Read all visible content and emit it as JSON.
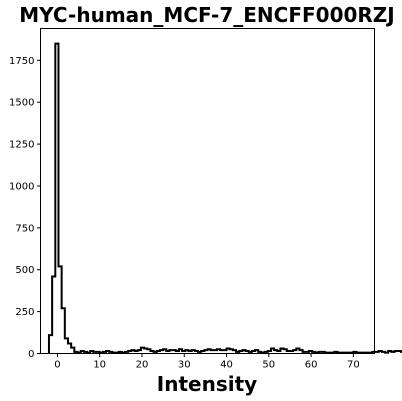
{
  "chart_data": {
    "type": "histogram",
    "title": "MYC-human_MCF-7_ENCFF000RZJ",
    "xlabel": "Intensity",
    "ylabel": "",
    "xlim": [
      -4,
      75
    ],
    "ylim": [
      0,
      1940
    ],
    "grid": false,
    "legend": "none",
    "histtype": "step",
    "line_color": "#000000",
    "x_ticks": [
      0,
      10,
      20,
      30,
      40,
      50,
      60,
      70
    ],
    "y_ticks": [
      0,
      250,
      500,
      750,
      1000,
      1250,
      1500,
      1750
    ],
    "bin_start": -2,
    "bin_width": 0.75,
    "counts": [
      110,
      460,
      1850,
      520,
      270,
      90,
      60,
      35,
      10,
      5,
      15,
      10,
      5,
      15,
      10,
      10,
      5,
      10,
      15,
      10,
      5,
      5,
      10,
      5,
      10,
      15,
      20,
      15,
      20,
      35,
      30,
      25,
      15,
      10,
      15,
      20,
      25,
      15,
      20,
      20,
      15,
      25,
      15,
      20,
      15,
      20,
      15,
      10,
      15,
      20,
      25,
      20,
      20,
      25,
      20,
      20,
      30,
      25,
      20,
      10,
      15,
      20,
      15,
      10,
      15,
      20,
      10,
      5,
      10,
      15,
      30,
      20,
      15,
      30,
      25,
      15,
      15,
      20,
      30,
      20,
      10,
      10,
      15,
      10,
      5,
      10,
      10,
      5,
      5,
      5,
      10,
      5,
      5,
      5,
      5,
      5,
      10,
      5,
      5,
      5,
      5,
      5,
      10,
      10,
      15,
      10,
      5,
      15,
      10,
      15,
      15,
      10,
      5,
      10,
      5,
      10,
      5,
      0,
      0,
      0,
      0,
      0,
      0,
      0,
      0,
      0,
      0,
      0,
      0,
      0,
      0,
      0
    ]
  }
}
